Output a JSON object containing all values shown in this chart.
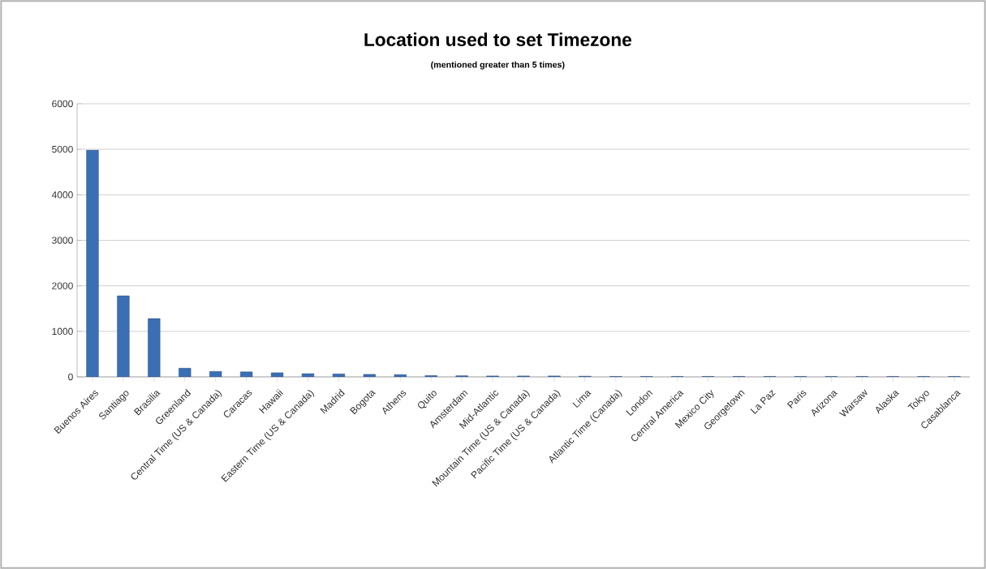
{
  "chart_data": {
    "type": "bar",
    "title": "Location used to set Timezone",
    "subtitle": "(mentioned greater than 5 times)",
    "categories": [
      "Buenos Aires",
      "Santiago",
      "Brasilia",
      "Greenland",
      "Central Time (US & Canada)",
      "Caracas",
      "Hawaii",
      "Eastern Time (US & Canada)",
      "Madrid",
      "Bogota",
      "Athens",
      "Quito",
      "Amsterdam",
      "Mid-Atlantic",
      "Mountain Time (US & Canada)",
      "Pacific Time (US & Canada)",
      "Lima",
      "Atlantic Time (Canada)",
      "London",
      "Central America",
      "Mexico City",
      "Georgetown",
      "La Paz",
      "Paris",
      "Arizona",
      "Warsaw",
      "Alaska",
      "Tokyo",
      "Casablanca"
    ],
    "values": [
      4980,
      1780,
      1280,
      190,
      120,
      110,
      90,
      70,
      65,
      55,
      50,
      30,
      25,
      20,
      20,
      20,
      15,
      10,
      10,
      10,
      10,
      10,
      10,
      10,
      10,
      10,
      10,
      10,
      10
    ],
    "color": "#3a6fb5",
    "ylim": [
      0,
      6000
    ],
    "yticks": [
      0,
      1000,
      2000,
      3000,
      4000,
      5000,
      6000
    ],
    "grid": "y"
  }
}
